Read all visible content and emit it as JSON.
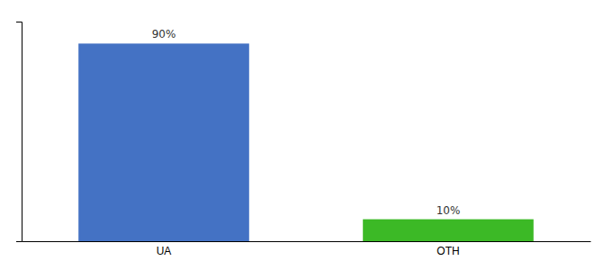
{
  "chart_data": {
    "type": "bar",
    "categories": [
      "UA",
      "OTH"
    ],
    "values": [
      90,
      10
    ],
    "value_labels": [
      "90%",
      "10%"
    ],
    "colors": [
      "#4472c4",
      "#3cb926"
    ],
    "ylim": [
      0,
      100
    ],
    "data_labels": true,
    "tick_labels": "x"
  }
}
